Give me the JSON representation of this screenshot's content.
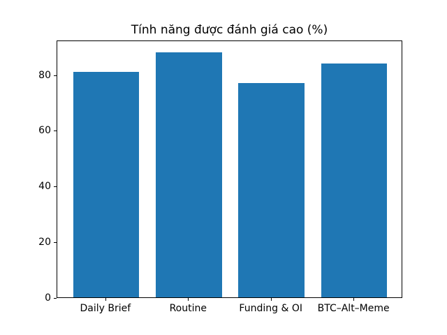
{
  "chart_data": {
    "type": "bar",
    "title": "Tính năng được đánh giá cao (%)",
    "categories": [
      "Daily Brief",
      "Routine",
      "Funding & OI",
      "BTC–Alt–Meme"
    ],
    "values": [
      81,
      88,
      77,
      84
    ],
    "xlabel": "",
    "ylabel": "",
    "ylim": [
      0,
      92.4
    ],
    "yticks": [
      0,
      20,
      40,
      60,
      80
    ],
    "bar_color": "#1f77b4",
    "axis_color": "#000000",
    "background": "#ffffff",
    "grid": false,
    "legend_position": "none"
  }
}
